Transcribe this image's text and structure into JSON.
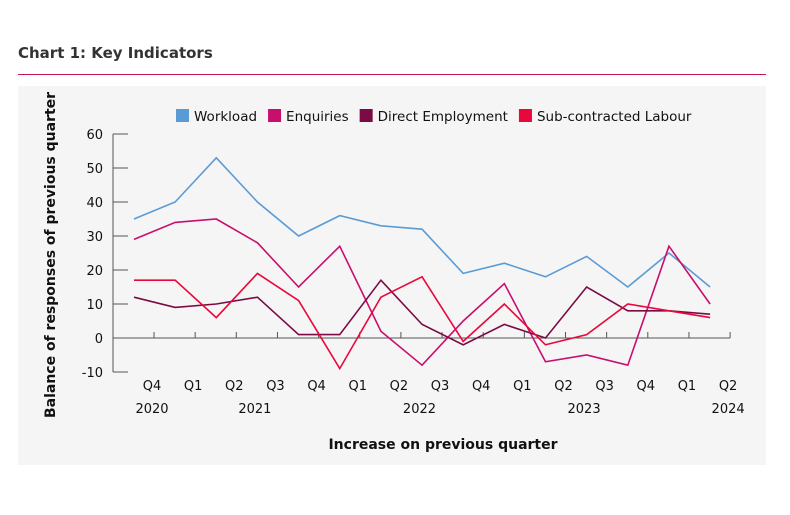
{
  "title": "Chart 1: Key Indicators",
  "chart_data": {
    "type": "line",
    "title": "Chart 1: Key Indicators",
    "xlabel": "Increase on previous quarter",
    "ylabel": "Balance of responses of previous quarter",
    "ylim": [
      -10,
      60
    ],
    "yticks": [
      -10,
      0,
      10,
      20,
      30,
      40,
      50,
      60
    ],
    "x": [
      "Q4 2020",
      "Q1 2021",
      "Q2 2021",
      "Q3 2021",
      "Q4 2021",
      "Q1 2022",
      "Q2 2022",
      "Q3 2022",
      "Q4 2022",
      "Q1 2023",
      "Q2 2023",
      "Q3 2023",
      "Q4 2023",
      "Q1 2024",
      "Q2 2024"
    ],
    "tick_labels": [
      "Q4",
      "Q1",
      "Q2",
      "Q3",
      "Q4",
      "Q1",
      "Q2",
      "Q3",
      "Q4",
      "Q1",
      "Q2",
      "Q3",
      "Q4",
      "Q1",
      "Q2"
    ],
    "year_labels": [
      {
        "label": "2020",
        "at": 0
      },
      {
        "label": "2021",
        "at": 2.5
      },
      {
        "label": "2022",
        "at": 6.5
      },
      {
        "label": "2023",
        "at": 10.5
      },
      {
        "label": "2024",
        "at": 14
      }
    ],
    "legend_placement": "top",
    "grid": false,
    "series": [
      {
        "name": "Workload",
        "color": "#5b9bd5",
        "values": [
          35,
          40,
          53,
          40,
          30,
          36,
          33,
          32,
          19,
          22,
          18,
          24,
          15,
          25,
          15
        ]
      },
      {
        "name": "Enquiries",
        "color": "#c80f6e",
        "values": [
          29,
          34,
          35,
          28,
          15,
          27,
          2,
          -8,
          5,
          16,
          -7,
          -5,
          -8,
          27,
          10
        ]
      },
      {
        "name": "Direct Employment",
        "color": "#7a0b45",
        "values": [
          12,
          9,
          10,
          12,
          1,
          1,
          17,
          4,
          -2,
          4,
          0,
          15,
          8,
          8,
          7
        ]
      },
      {
        "name": "Sub-contracted Labour",
        "color": "#e8083b",
        "values": [
          17,
          17,
          6,
          19,
          11,
          -9,
          12,
          18,
          -1,
          10,
          -2,
          1,
          10,
          8,
          6
        ]
      }
    ]
  }
}
